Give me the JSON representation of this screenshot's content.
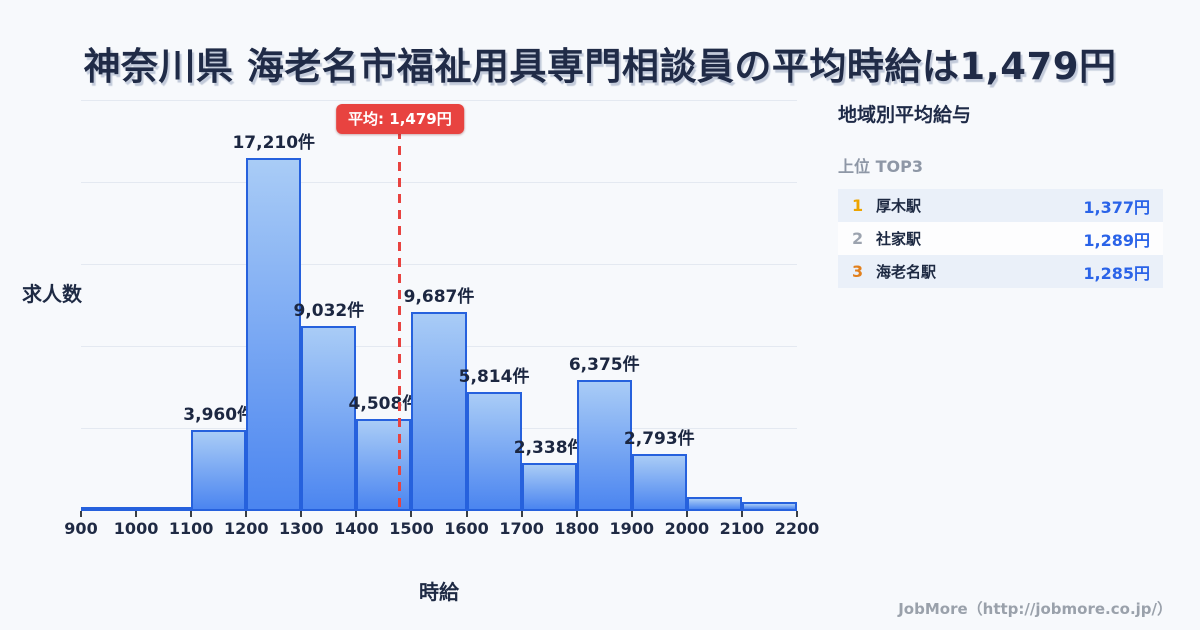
{
  "title": "神奈川県 海老名市福祉用具専門相談員の平均時給は1,479円",
  "chart_data": {
    "type": "bar",
    "subtype": "histogram",
    "xlabel": "時給",
    "ylabel": "求人数",
    "ylim": [
      0,
      20000
    ],
    "gridline_step": 4000,
    "grid": true,
    "bin_edges": [
      900,
      1000,
      1100,
      1200,
      1300,
      1400,
      1500,
      1600,
      1700,
      1800,
      1900,
      2000,
      2100,
      2200
    ],
    "values": [
      120,
      200,
      3960,
      17210,
      9032,
      4508,
      9687,
      5814,
      2338,
      6375,
      2793,
      700,
      430
    ],
    "bar_labels": [
      null,
      null,
      "3,960件",
      "17,210件",
      "9,032件",
      "4,508件",
      "9,687件",
      "5,814件",
      "2,338件",
      "6,375件",
      "2,793件",
      null,
      null
    ],
    "average": {
      "value": 1479,
      "label": "平均: 1,479円"
    }
  },
  "sidebar": {
    "title": "地域別平均給与",
    "subtitle": "上位 TOP3",
    "rows": [
      {
        "rank": "1",
        "station": "厚木駅",
        "salary": "1,377円",
        "rank_color": "#eda400"
      },
      {
        "rank": "2",
        "station": "社家駅",
        "salary": "1,289円",
        "rank_color": "#9ca3af"
      },
      {
        "rank": "3",
        "station": "海老名駅",
        "salary": "1,285円",
        "rank_color": "#e2801d"
      }
    ]
  },
  "footer": {
    "credit": "JobMore（http://jobmore.co.jp/）"
  },
  "colors": {
    "background": "#f7f9fc",
    "accent_red": "#e84340",
    "bar_border": "#2661dd",
    "bar_gradient_top": "#a9ccf6",
    "bar_gradient_bottom": "#4b85f0",
    "price_blue": "#2a63e8"
  }
}
